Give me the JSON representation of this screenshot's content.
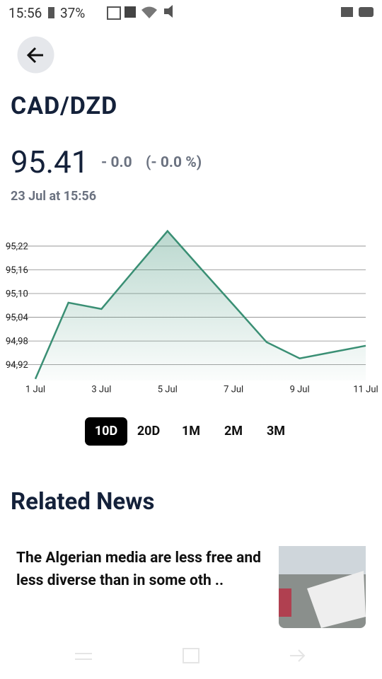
{
  "status_bar": {
    "time": "15:56",
    "battery": "37%"
  },
  "pair": {
    "title": "CAD/DZD",
    "price": "95.41",
    "change": "- 0.0",
    "change_percent": "(- 0.0 %)",
    "timestamp": "23 Jul at 15:56"
  },
  "chart_data": {
    "type": "line",
    "categories": [
      "1 Jul",
      null,
      "3 Jul",
      null,
      "5 Jul",
      null,
      "7 Jul",
      null,
      "9 Jul",
      null,
      "11 Jul"
    ],
    "series": [
      {
        "color": "#3a8f74",
        "values": [
          94.884,
          95.077,
          95.061,
          95.16,
          95.258,
          95.164,
          95.071,
          94.977,
          94.936,
          94.952,
          94.968
        ]
      }
    ],
    "ylim": [
      94.88,
      95.27
    ],
    "yticks": [
      {
        "value": 94.92,
        "label": "94,92"
      },
      {
        "value": 94.98,
        "label": "94,98"
      },
      {
        "value": 95.04,
        "label": "95,04"
      },
      {
        "value": 95.1,
        "label": "95,10"
      },
      {
        "value": 95.16,
        "label": "95,16"
      },
      {
        "value": 95.22,
        "label": "95,22"
      }
    ],
    "grid": true
  },
  "ranges": {
    "options": [
      "10D",
      "20D",
      "1M",
      "2M",
      "3M"
    ],
    "selected": "10D"
  },
  "news": {
    "heading": "Related News",
    "articles": [
      {
        "title": "The Algerian media are less free and less diverse than in some oth .."
      }
    ]
  }
}
